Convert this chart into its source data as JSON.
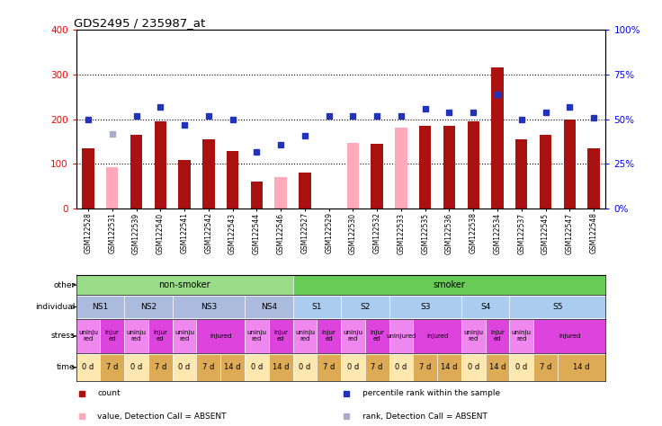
{
  "title": "GDS2495 / 235987_at",
  "samples": [
    "GSM122528",
    "GSM122531",
    "GSM122539",
    "GSM122540",
    "GSM122541",
    "GSM122542",
    "GSM122543",
    "GSM122544",
    "GSM122546",
    "GSM122527",
    "GSM122529",
    "GSM122530",
    "GSM122532",
    "GSM122533",
    "GSM122535",
    "GSM122536",
    "GSM122538",
    "GSM122534",
    "GSM122537",
    "GSM122545",
    "GSM122547",
    "GSM122548"
  ],
  "count_values": [
    135,
    null,
    165,
    195,
    110,
    155,
    130,
    60,
    60,
    80,
    null,
    145,
    145,
    null,
    185,
    185,
    195,
    315,
    155,
    165,
    200,
    135
  ],
  "count_absent": [
    null,
    92,
    null,
    null,
    null,
    null,
    null,
    null,
    70,
    null,
    null,
    147,
    null,
    182,
    null,
    null,
    null,
    null,
    null,
    null,
    null,
    null
  ],
  "rank_values": [
    50,
    null,
    52,
    57,
    47,
    52,
    50,
    32,
    36,
    41,
    52,
    52,
    52,
    52,
    56,
    54,
    54,
    64,
    50,
    54,
    57,
    51
  ],
  "rank_absent": [
    null,
    42,
    null,
    null,
    null,
    null,
    null,
    null,
    null,
    null,
    null,
    null,
    null,
    null,
    null,
    null,
    null,
    null,
    null,
    null,
    null,
    null
  ],
  "bar_color_present": "#aa1111",
  "bar_color_absent": "#ffaabb",
  "rank_color_present": "#2233bb",
  "rank_color_absent": "#aaaacc",
  "annotation_rows": {
    "other": {
      "label": "other",
      "groups": [
        {
          "label": "non-smoker",
          "start": 0,
          "end": 8,
          "color": "#99dd88"
        },
        {
          "label": "smoker",
          "start": 9,
          "end": 21,
          "color": "#66cc55"
        }
      ]
    },
    "individual": {
      "label": "individual",
      "groups": [
        {
          "label": "NS1",
          "start": 0,
          "end": 1,
          "color": "#aabbdd"
        },
        {
          "label": "NS2",
          "start": 2,
          "end": 3,
          "color": "#aabbdd"
        },
        {
          "label": "NS3",
          "start": 4,
          "end": 6,
          "color": "#aabbdd"
        },
        {
          "label": "NS4",
          "start": 7,
          "end": 8,
          "color": "#aabbdd"
        },
        {
          "label": "S1",
          "start": 9,
          "end": 10,
          "color": "#aaccee"
        },
        {
          "label": "S2",
          "start": 11,
          "end": 12,
          "color": "#aaccee"
        },
        {
          "label": "S3",
          "start": 13,
          "end": 15,
          "color": "#aaccee"
        },
        {
          "label": "S4",
          "start": 16,
          "end": 17,
          "color": "#aaccee"
        },
        {
          "label": "S5",
          "start": 18,
          "end": 21,
          "color": "#aaccee"
        }
      ]
    },
    "stress": {
      "label": "stress",
      "groups": [
        {
          "label": "uninju\nred",
          "start": 0,
          "end": 0,
          "color": "#ee88ee"
        },
        {
          "label": "injur\ned",
          "start": 1,
          "end": 1,
          "color": "#dd44dd"
        },
        {
          "label": "uninju\nred",
          "start": 2,
          "end": 2,
          "color": "#ee88ee"
        },
        {
          "label": "injur\ned",
          "start": 3,
          "end": 3,
          "color": "#dd44dd"
        },
        {
          "label": "uninju\nred",
          "start": 4,
          "end": 4,
          "color": "#ee88ee"
        },
        {
          "label": "injured",
          "start": 5,
          "end": 6,
          "color": "#dd44dd"
        },
        {
          "label": "uninju\nred",
          "start": 7,
          "end": 7,
          "color": "#ee88ee"
        },
        {
          "label": "injur\ned",
          "start": 8,
          "end": 8,
          "color": "#dd44dd"
        },
        {
          "label": "uninju\nred",
          "start": 9,
          "end": 9,
          "color": "#ee88ee"
        },
        {
          "label": "injur\ned",
          "start": 10,
          "end": 10,
          "color": "#dd44dd"
        },
        {
          "label": "uninju\nred",
          "start": 11,
          "end": 11,
          "color": "#ee88ee"
        },
        {
          "label": "injur\ned",
          "start": 12,
          "end": 12,
          "color": "#dd44dd"
        },
        {
          "label": "uninjured",
          "start": 13,
          "end": 13,
          "color": "#ee88ee"
        },
        {
          "label": "injured",
          "start": 14,
          "end": 15,
          "color": "#dd44dd"
        },
        {
          "label": "uninju\nred",
          "start": 16,
          "end": 16,
          "color": "#ee88ee"
        },
        {
          "label": "injur\ned",
          "start": 17,
          "end": 17,
          "color": "#dd44dd"
        },
        {
          "label": "uninju\nred",
          "start": 18,
          "end": 18,
          "color": "#ee88ee"
        },
        {
          "label": "injured",
          "start": 19,
          "end": 21,
          "color": "#dd44dd"
        }
      ]
    },
    "time": {
      "label": "time",
      "groups": [
        {
          "label": "0 d",
          "start": 0,
          "end": 0,
          "color": "#ffe8b0"
        },
        {
          "label": "7 d",
          "start": 1,
          "end": 1,
          "color": "#ddaa55"
        },
        {
          "label": "0 d",
          "start": 2,
          "end": 2,
          "color": "#ffe8b0"
        },
        {
          "label": "7 d",
          "start": 3,
          "end": 3,
          "color": "#ddaa55"
        },
        {
          "label": "0 d",
          "start": 4,
          "end": 4,
          "color": "#ffe8b0"
        },
        {
          "label": "7 d",
          "start": 5,
          "end": 5,
          "color": "#ddaa55"
        },
        {
          "label": "14 d",
          "start": 6,
          "end": 6,
          "color": "#ddaa55"
        },
        {
          "label": "0 d",
          "start": 7,
          "end": 7,
          "color": "#ffe8b0"
        },
        {
          "label": "14 d",
          "start": 8,
          "end": 8,
          "color": "#ddaa55"
        },
        {
          "label": "0 d",
          "start": 9,
          "end": 9,
          "color": "#ffe8b0"
        },
        {
          "label": "7 d",
          "start": 10,
          "end": 10,
          "color": "#ddaa55"
        },
        {
          "label": "0 d",
          "start": 11,
          "end": 11,
          "color": "#ffe8b0"
        },
        {
          "label": "7 d",
          "start": 12,
          "end": 12,
          "color": "#ddaa55"
        },
        {
          "label": "0 d",
          "start": 13,
          "end": 13,
          "color": "#ffe8b0"
        },
        {
          "label": "7 d",
          "start": 14,
          "end": 14,
          "color": "#ddaa55"
        },
        {
          "label": "14 d",
          "start": 15,
          "end": 15,
          "color": "#ddaa55"
        },
        {
          "label": "0 d",
          "start": 16,
          "end": 16,
          "color": "#ffe8b0"
        },
        {
          "label": "14 d",
          "start": 17,
          "end": 17,
          "color": "#ddaa55"
        },
        {
          "label": "0 d",
          "start": 18,
          "end": 18,
          "color": "#ffe8b0"
        },
        {
          "label": "7 d",
          "start": 19,
          "end": 19,
          "color": "#ddaa55"
        },
        {
          "label": "14 d",
          "start": 20,
          "end": 21,
          "color": "#ddaa55"
        }
      ]
    }
  },
  "legend_items": [
    {
      "label": "count",
      "color": "#aa1111",
      "marker": "s"
    },
    {
      "label": "percentile rank within the sample",
      "color": "#2233bb",
      "marker": "s"
    },
    {
      "label": "value, Detection Call = ABSENT",
      "color": "#ffaabb",
      "marker": "s"
    },
    {
      "label": "rank, Detection Call = ABSENT",
      "color": "#aaaacc",
      "marker": "s"
    }
  ]
}
